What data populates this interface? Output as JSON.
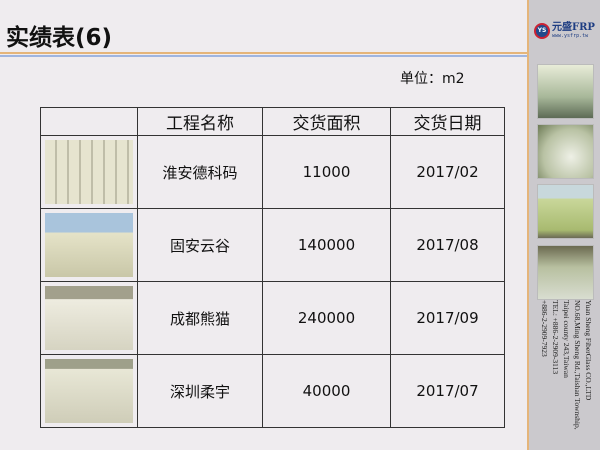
{
  "title": "实绩表(6)",
  "unit": "单位：m2",
  "logo": {
    "mark": "YS",
    "name": "元盛FRP",
    "url": "www.ysfrp.tw"
  },
  "company": {
    "lines": [
      "Yuan Sheng FiberGlass CO.,LTD",
      "NO.68,Ming Sheng Rd.,Taishan Township,",
      "Taipei county 243,Taiwan",
      "TEL: +886-2-2909-3113",
      "+886-2-2909-7923"
    ]
  },
  "table": {
    "headers": [
      "",
      "工程名称",
      "交货面积",
      "交货日期"
    ],
    "rows": [
      {
        "name": "淮安德科码",
        "area": "11000",
        "date": "2017/02"
      },
      {
        "name": "固安云谷",
        "area": "140000",
        "date": "2017/08"
      },
      {
        "name": "成都熊猫",
        "area": "240000",
        "date": "2017/09"
      },
      {
        "name": "深圳柔宇",
        "area": "40000",
        "date": "2017/07"
      }
    ]
  },
  "colors": {
    "accent_orange": "#e5b57a",
    "accent_blue": "#9fb5e0",
    "tank": "#e8e6cc"
  }
}
